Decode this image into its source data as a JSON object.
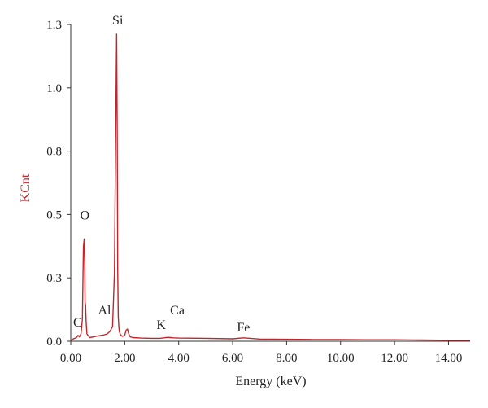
{
  "chart_data": {
    "type": "line",
    "title": "",
    "xlabel": "Energy (keV)",
    "ylabel": "KCnt",
    "xlim": [
      0,
      14.8
    ],
    "ylim": [
      0,
      1.3
    ],
    "grid": false,
    "x_ticks": [
      "0.00",
      "2.00",
      "4.00",
      "6.00",
      "8.00",
      "10.00",
      "12.00",
      "14.00"
    ],
    "x_tick_values": [
      0,
      2,
      4,
      6,
      8,
      10,
      12,
      14
    ],
    "y_ticks": [
      "0.0",
      "0.3",
      "0.5",
      "0.8",
      "1.0",
      "1.3"
    ],
    "y_tick_values": [
      0.0,
      0.26,
      0.52,
      0.78,
      1.04,
      1.3
    ],
    "series": [
      {
        "color": "#c0272d",
        "x": [
          0.0,
          0.1,
          0.2,
          0.27,
          0.32,
          0.38,
          0.43,
          0.47,
          0.5,
          0.52,
          0.53,
          0.55,
          0.57,
          0.6,
          0.7,
          0.85,
          1.0,
          1.2,
          1.35,
          1.45,
          1.55,
          1.62,
          1.66,
          1.7,
          1.72,
          1.74,
          1.76,
          1.78,
          1.8,
          1.85,
          1.92,
          2.0,
          2.05,
          2.1,
          2.15,
          2.2,
          2.3,
          2.6,
          3.0,
          3.3,
          3.6,
          3.7,
          3.8,
          4.0,
          5.0,
          6.0,
          6.4,
          7.0,
          8.0,
          9.0,
          10.0,
          11.0,
          12.0,
          13.0,
          14.0,
          14.8
        ],
        "y": [
          0.003,
          0.01,
          0.014,
          0.024,
          0.018,
          0.03,
          0.09,
          0.39,
          0.42,
          0.28,
          0.16,
          0.15,
          0.08,
          0.03,
          0.015,
          0.018,
          0.022,
          0.025,
          0.03,
          0.04,
          0.06,
          0.28,
          0.8,
          1.26,
          0.88,
          0.3,
          0.1,
          0.06,
          0.04,
          0.025,
          0.02,
          0.025,
          0.045,
          0.05,
          0.03,
          0.018,
          0.015,
          0.013,
          0.012,
          0.012,
          0.016,
          0.015,
          0.014,
          0.013,
          0.012,
          0.01,
          0.014,
          0.009,
          0.008,
          0.007,
          0.007,
          0.006,
          0.006,
          0.005,
          0.004,
          0.004
        ]
      }
    ],
    "annotations": [
      {
        "text": "Si",
        "x": 1.74,
        "y": 1.3
      },
      {
        "text": "O",
        "x": 0.52,
        "y": 0.5
      },
      {
        "text": "C",
        "x": 0.25,
        "y": 0.06
      },
      {
        "text": "Al",
        "x": 1.25,
        "y": 0.11
      },
      {
        "text": "K",
        "x": 3.35,
        "y": 0.05
      },
      {
        "text": "Ca",
        "x": 3.95,
        "y": 0.11
      },
      {
        "text": "Fe",
        "x": 6.4,
        "y": 0.04
      }
    ]
  }
}
